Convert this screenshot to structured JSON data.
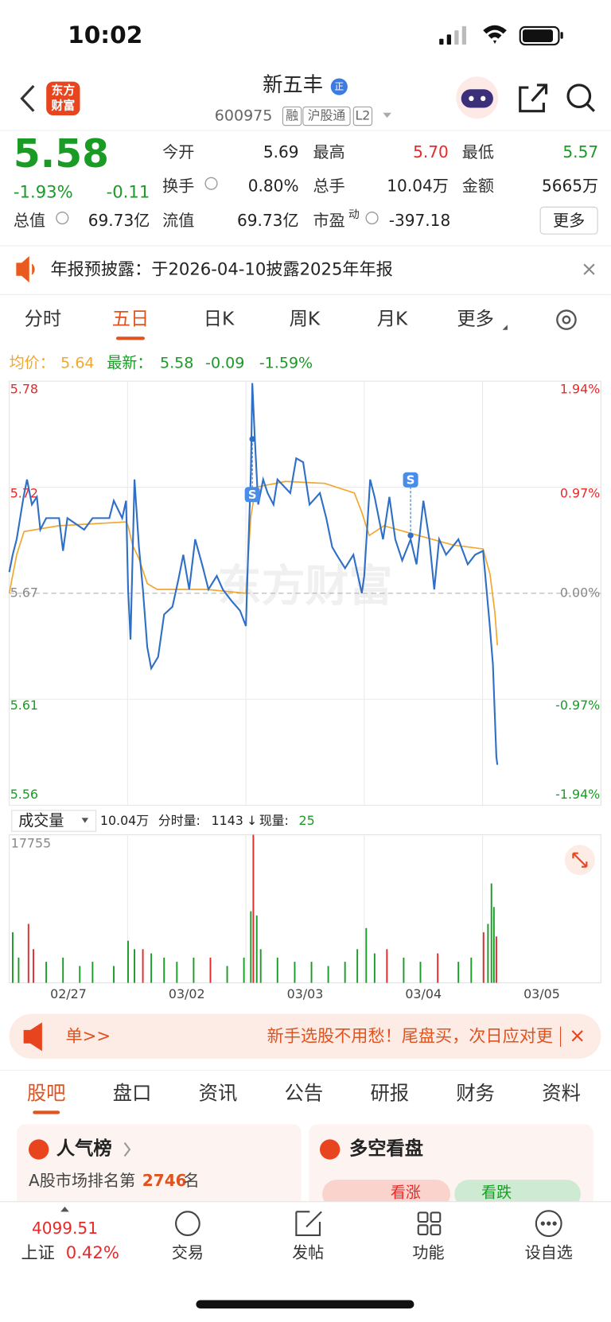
{
  "status_bar": {
    "time": "10:02"
  },
  "header": {
    "logo": [
      "东方",
      "财富"
    ],
    "title": "新五丰",
    "badge": "正",
    "code": "600975",
    "tags": [
      "融",
      "沪股通",
      "L2"
    ]
  },
  "quote": {
    "price": "5.58",
    "change_pct": "-1.93%",
    "change": "-0.11",
    "color": "#1a9b26",
    "fields": [
      {
        "label": "今开",
        "value": "5.69",
        "color": "#222"
      },
      {
        "label": "最高",
        "value": "5.70",
        "color": "#e8292a"
      },
      {
        "label": "最低",
        "value": "5.57",
        "color": "#1a9b26"
      },
      {
        "label": "换手",
        "value": "0.80%",
        "color": "#222"
      },
      {
        "label": "总手",
        "value": "10.04万",
        "color": "#222"
      },
      {
        "label": "金额",
        "value": "5665万",
        "color": "#222"
      },
      {
        "label": "总值",
        "value": "69.73亿",
        "color": "#222"
      },
      {
        "label": "流值",
        "value": "69.73亿",
        "color": "#222"
      },
      {
        "label": "市盈",
        "sup": "动",
        "value": "-397.18",
        "color": "#222"
      }
    ],
    "more": "更多"
  },
  "notice": {
    "text": "年报预披露：于2026-04-10披露2025年年报"
  },
  "tabs": {
    "items": [
      "分时",
      "五日",
      "日K",
      "周K",
      "月K",
      "更多"
    ],
    "active": 1
  },
  "chart_data": [
    {
      "type": "line",
      "watermark": "东方财富",
      "legend": {
        "avg_value": "5.64",
        "latest_value": "5.58",
        "latest_change": "-0.09",
        "latest_pct": "-1.59%",
        "color": "#1a9b26"
      },
      "series": [
        {
          "name": "均价：",
          "color": "#f0a830",
          "x": [
            0,
            15,
            30,
            100,
            237,
            241,
            250,
            263,
            280,
            300,
            400,
            480,
            490,
            500,
            560,
            640,
            700,
            715,
            730,
            760,
            830,
            900,
            961,
            975,
            985,
            990
          ],
          "values": [
            5.67,
            5.69,
            5.702,
            5.705,
            5.707,
            5.705,
            5.695,
            5.688,
            5.675,
            5.672,
            5.672,
            5.67,
            5.71,
            5.725,
            5.728,
            5.727,
            5.722,
            5.712,
            5.7,
            5.705,
            5.7,
            5.695,
            5.693,
            5.68,
            5.66,
            5.643
          ]
        },
        {
          "name": "最新：",
          "color": "#2f6fc6",
          "x": [
            0,
            7,
            15,
            29,
            36,
            46,
            56,
            63,
            75,
            101,
            109,
            118,
            152,
            169,
            203,
            212,
            229,
            237,
            241,
            246,
            254,
            263,
            271,
            280,
            288,
            302,
            314,
            331,
            343,
            353,
            365,
            377,
            391,
            404,
            421,
            433,
            451,
            468,
            480,
            485,
            490,
            493,
            498,
            505,
            515,
            524,
            536,
            544,
            570,
            582,
            596,
            609,
            630,
            643,
            655,
            664,
            681,
            698,
            715,
            720,
            732,
            741,
            758,
            771,
            783,
            797,
            814,
            826,
            840,
            852,
            862,
            872,
            886,
            911,
            930,
            945,
            961,
            968,
            974,
            981,
            988,
            990
          ],
          "values": [
            5.681,
            5.69,
            5.698,
            5.72,
            5.729,
            5.716,
            5.72,
            5.703,
            5.709,
            5.709,
            5.692,
            5.709,
            5.703,
            5.709,
            5.709,
            5.718,
            5.709,
            5.718,
            5.672,
            5.646,
            5.729,
            5.694,
            5.672,
            5.642,
            5.631,
            5.637,
            5.659,
            5.663,
            5.677,
            5.69,
            5.672,
            5.698,
            5.685,
            5.672,
            5.679,
            5.672,
            5.666,
            5.661,
            5.653,
            5.694,
            5.733,
            5.779,
            5.751,
            5.716,
            5.729,
            5.722,
            5.716,
            5.729,
            5.722,
            5.74,
            5.738,
            5.716,
            5.722,
            5.709,
            5.694,
            5.69,
            5.683,
            5.69,
            5.67,
            5.679,
            5.729,
            5.72,
            5.698,
            5.72,
            5.698,
            5.687,
            5.698,
            5.685,
            5.718,
            5.698,
            5.672,
            5.698,
            5.69,
            5.698,
            5.685,
            5.69,
            5.692,
            5.672,
            5.655,
            5.633,
            5.585,
            5.581
          ]
        }
      ],
      "xlim": [
        0,
        1200
      ],
      "xticks": [
        240,
        480,
        720,
        960
      ],
      "ylim": [
        5.56,
        5.78
      ],
      "yticks": [
        5.78,
        {
          "value": 5.725,
          "label": "5.72"
        },
        5.67,
        {
          "value": 5.615,
          "label": "5.61"
        },
        5.56
      ],
      "y2lim": [
        -1.94,
        1.94
      ],
      "y2ticks": [
        {
          "value": 1.94,
          "label": "1.94%"
        },
        {
          "value": 0.97,
          "label": "0.97%"
        },
        {
          "value": 0,
          "label": "0.00%"
        },
        {
          "value": -0.97,
          "label": "-0.97%"
        },
        {
          "value": -1.94,
          "label": "-1.94%"
        }
      ],
      "grid": true,
      "annotations": [
        {
          "text": "S",
          "x": 493,
          "value": 5.75
        },
        {
          "text": "S",
          "x": 814,
          "value": 5.7
        }
      ]
    },
    {
      "type": "bar",
      "selector": "成交量",
      "total": "10.04万",
      "tick_label": "分时量:",
      "tick_value": "1143",
      "direction": "↓",
      "now_label": "现量:",
      "now_value": "25",
      "now_color": "#1a9b26",
      "categories": [
        "02/27",
        "03/02",
        "03/03",
        "03/04",
        "03/05"
      ],
      "xlim": [
        0,
        1200
      ],
      "ylim": [
        0,
        17755
      ],
      "yticks": [
        17755
      ],
      "series": [
        {
          "color": "#e8292a",
          "x": [
            39,
            49,
            271,
            408,
            495,
            766,
            869,
            962,
            988
          ],
          "values": [
            7070,
            4040,
            4040,
            3030,
            17755,
            4040,
            3535,
            6060,
            5560
          ]
        },
        {
          "color": "#1a9b26",
          "x": [
            7,
            19,
            75,
            109,
            143,
            169,
            212,
            241,
            254,
            288,
            314,
            340,
            374,
            442,
            476,
            490,
            502,
            510,
            544,
            579,
            613,
            647,
            681,
            706,
            724,
            741,
            800,
            834,
            911,
            937,
            971,
            978,
            983
          ],
          "values": [
            6060,
            3030,
            2525,
            3030,
            2020,
            2525,
            2020,
            5050,
            4040,
            3535,
            3030,
            2525,
            3030,
            2020,
            3030,
            8585,
            8080,
            4040,
            3030,
            2525,
            2525,
            2020,
            2525,
            4040,
            6565,
            3535,
            3030,
            2525,
            2525,
            3030,
            7070,
            11920,
            9090
          ]
        }
      ]
    }
  ],
  "banner": {
    "link": "单>>",
    "text": "新手选股不用愁！尾盘买，次日应对更"
  },
  "sections": {
    "items": [
      "股吧",
      "盘口",
      "资讯",
      "公告",
      "研报",
      "财务",
      "资料"
    ],
    "active": 0
  },
  "cards": {
    "rank_title": "人气榜",
    "rank_prefix": "A股市场排名第",
    "rank_value": "2746",
    "rank_suffix": "名",
    "vote_title": "多空看盘",
    "vote_up": "看涨",
    "vote_down": "看跌"
  },
  "nav": {
    "index_value": "4099.51",
    "index_name": "上证",
    "index_change": "0.42%",
    "items": [
      "交易",
      "发帖",
      "功能",
      "设自选"
    ]
  }
}
